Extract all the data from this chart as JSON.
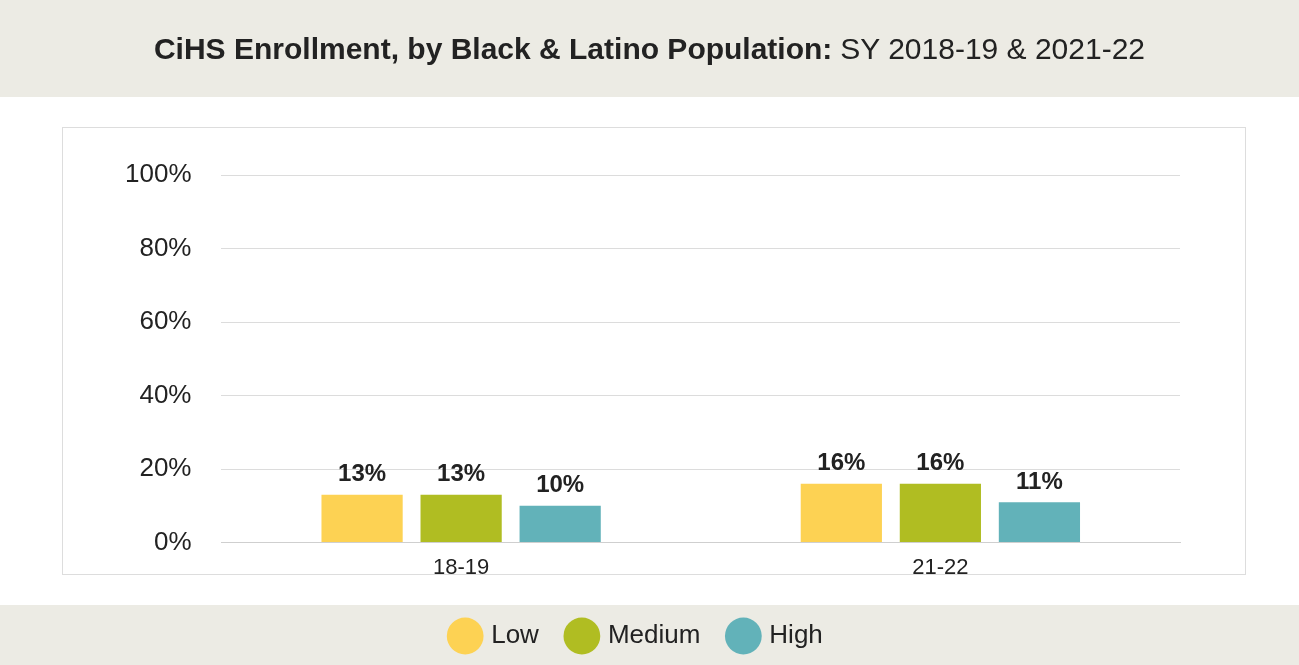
{
  "chart_data": {
    "type": "bar",
    "title": "CiHS Enrollment, by Black & Latino Population:",
    "subtitle": "SY 2018-19 & 2021-22",
    "categories": [
      "18-19",
      "21-22"
    ],
    "series": [
      {
        "name": "Low",
        "color": "#fdd253",
        "values": [
          13,
          16
        ],
        "value_labels": [
          "13%",
          "16%"
        ]
      },
      {
        "name": "Medium",
        "color": "#b0bd22",
        "values": [
          13,
          16
        ],
        "value_labels": [
          "13%",
          "16%"
        ]
      },
      {
        "name": "High",
        "color": "#62b2b9",
        "values": [
          10,
          11
        ],
        "value_labels": [
          "10%",
          "11%"
        ]
      }
    ],
    "ylim": [
      0,
      100
    ],
    "yticks": [
      {
        "value": 0,
        "label": "0%"
      },
      {
        "value": 20,
        "label": "20%"
      },
      {
        "value": 40,
        "label": "40%"
      },
      {
        "value": 60,
        "label": "60%"
      },
      {
        "value": 80,
        "label": "80%"
      },
      {
        "value": 100,
        "label": "100%"
      }
    ],
    "grid": "y",
    "legend": "bottom"
  }
}
